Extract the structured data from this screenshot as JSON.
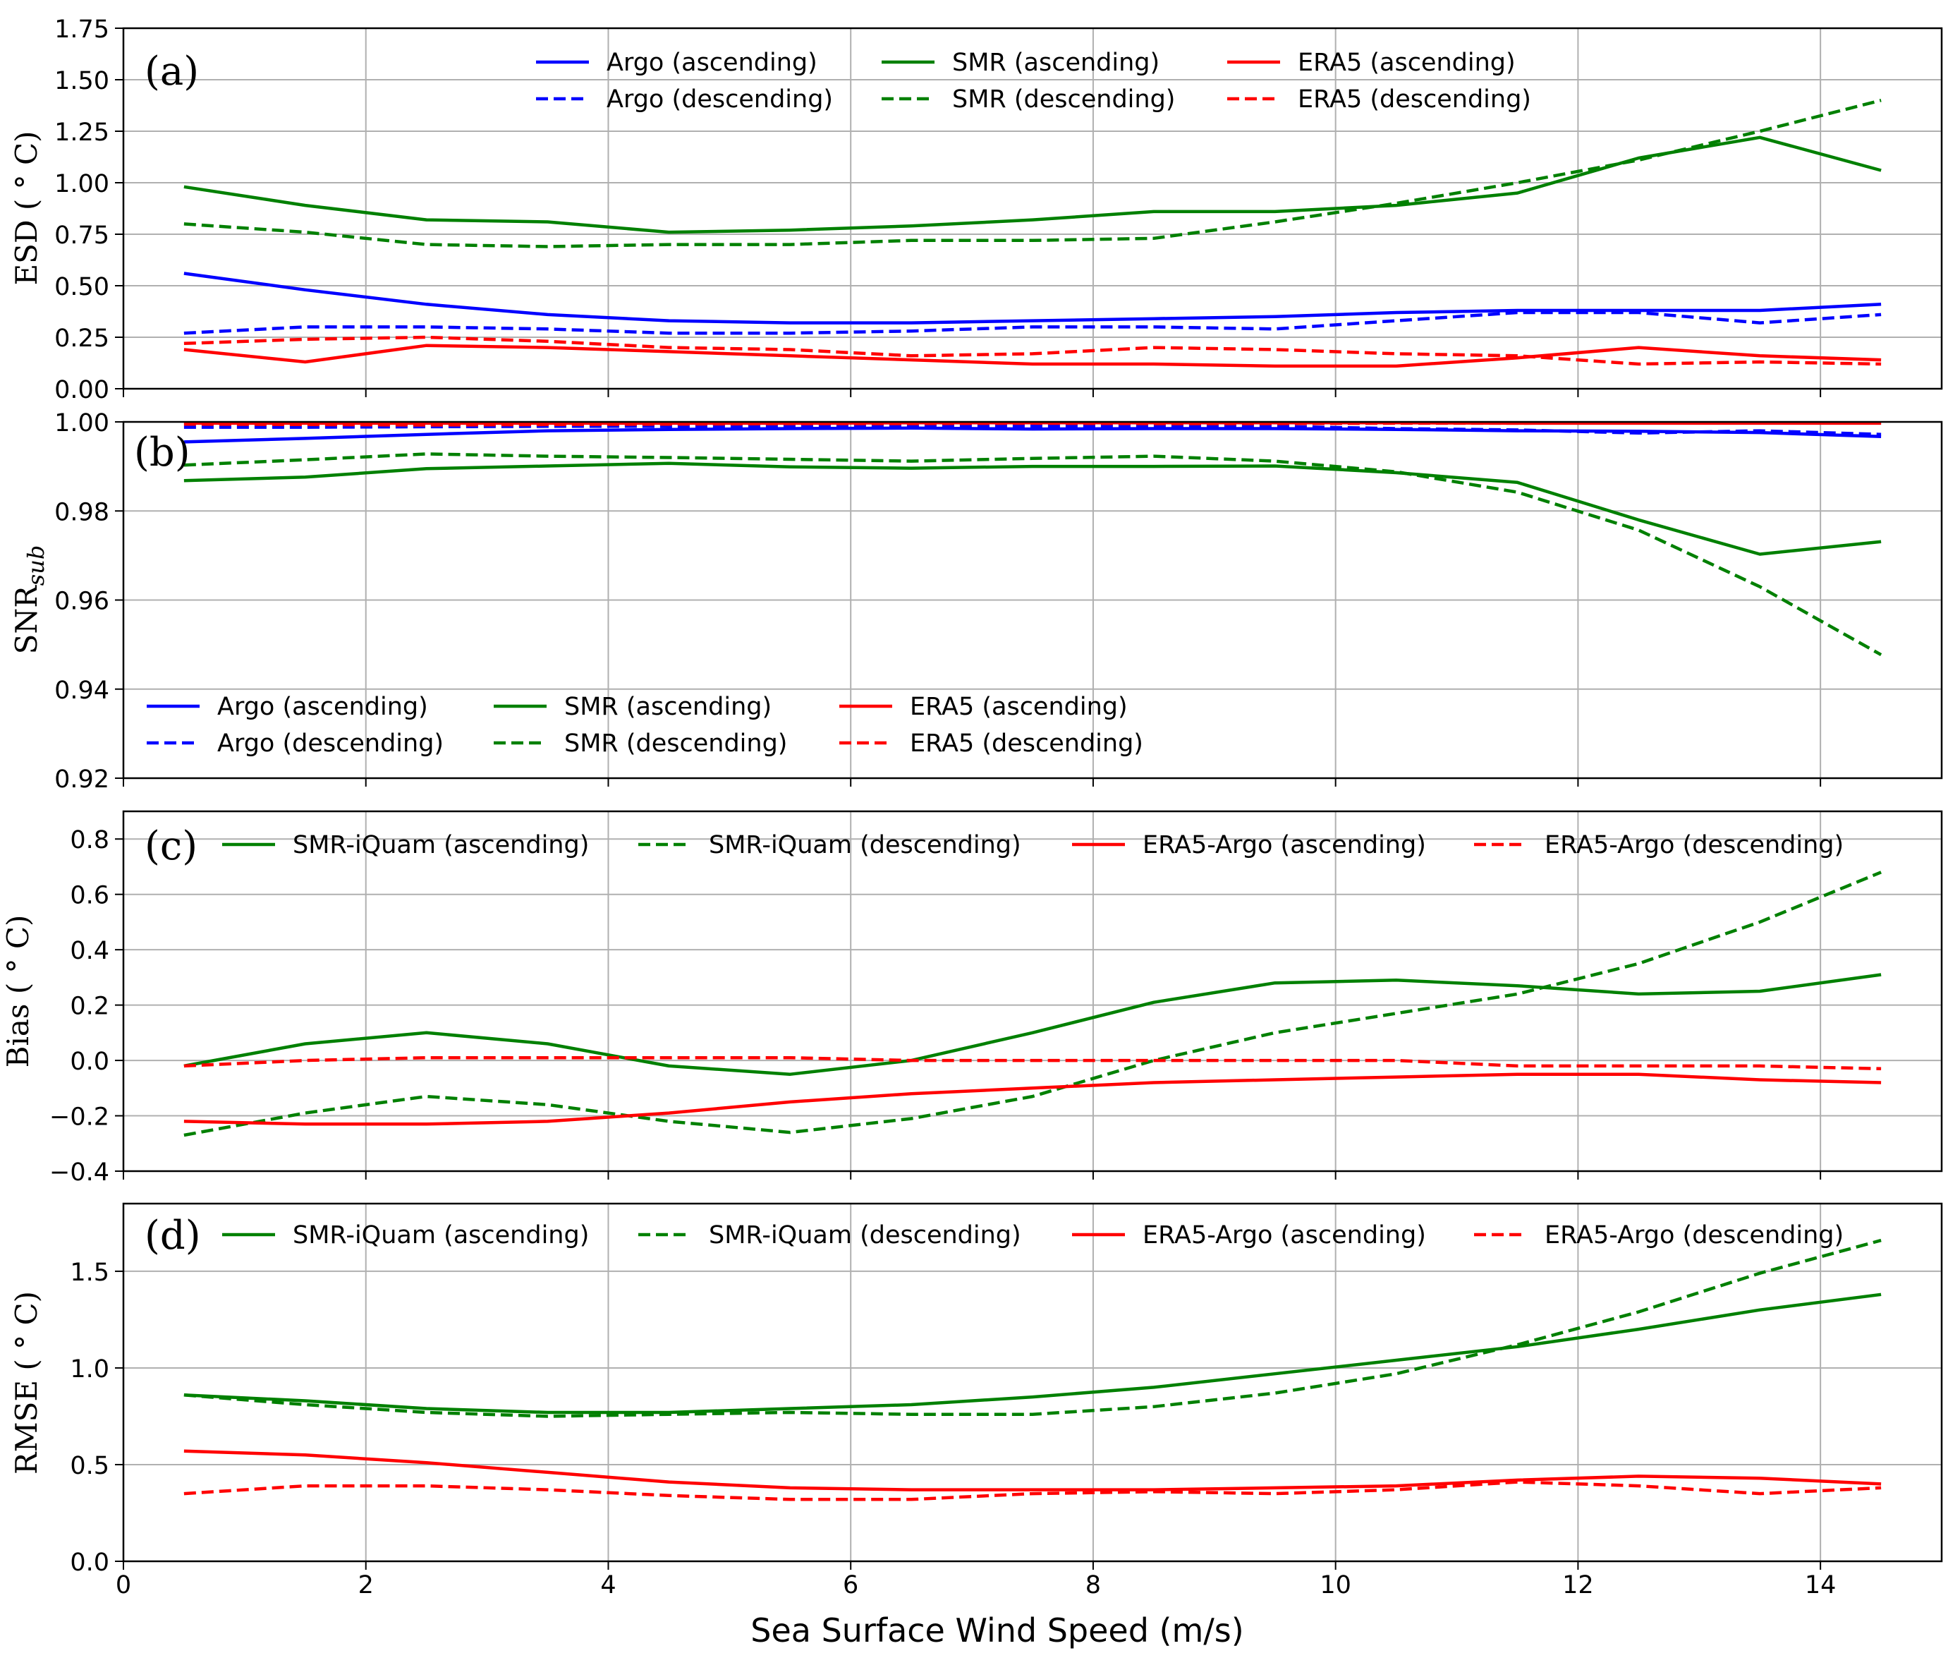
{
  "x_axis": {
    "label": "Sea Surface Wind Speed (m/s)",
    "range": [
      0,
      15
    ],
    "ticks": [
      0,
      2,
      4,
      6,
      8,
      10,
      12,
      14
    ]
  },
  "colors": {
    "argo": "#0000ff",
    "smr": "#008000",
    "era5": "#ff0000"
  },
  "chart_data": [
    {
      "type": "line",
      "panel": "(a)",
      "ylabel": "ESD ( ° C)",
      "ylim": [
        0,
        1.75
      ],
      "yticks": [
        "0.00",
        "0.25",
        "0.50",
        "0.75",
        "1.00",
        "1.25",
        "1.50",
        "1.75"
      ],
      "legend_position": "top-center",
      "x": [
        0.5,
        1.5,
        2.5,
        3.5,
        4.5,
        5.5,
        6.5,
        7.5,
        8.5,
        9.5,
        10.5,
        11.5,
        12.5,
        13.5,
        14.5
      ],
      "series": [
        {
          "name": "Argo (ascending)",
          "color": "#0000ff",
          "style": "solid",
          "values": [
            0.56,
            0.48,
            0.41,
            0.36,
            0.33,
            0.32,
            0.32,
            0.33,
            0.34,
            0.35,
            0.37,
            0.38,
            0.38,
            0.38,
            0.41
          ]
        },
        {
          "name": "SMR (ascending)",
          "color": "#008000",
          "style": "solid",
          "values": [
            0.98,
            0.89,
            0.82,
            0.81,
            0.76,
            0.77,
            0.79,
            0.82,
            0.86,
            0.86,
            0.89,
            0.95,
            1.12,
            1.22,
            1.06
          ]
        },
        {
          "name": "ERA5 (ascending)",
          "color": "#ff0000",
          "style": "solid",
          "values": [
            0.19,
            0.13,
            0.21,
            0.2,
            0.18,
            0.16,
            0.14,
            0.12,
            0.12,
            0.11,
            0.11,
            0.15,
            0.2,
            0.16,
            0.14
          ]
        },
        {
          "name": "Argo (descending)",
          "color": "#0000ff",
          "style": "dashed",
          "values": [
            0.27,
            0.3,
            0.3,
            0.29,
            0.27,
            0.27,
            0.28,
            0.3,
            0.3,
            0.29,
            0.33,
            0.37,
            0.37,
            0.32,
            0.36
          ]
        },
        {
          "name": "SMR (descending)",
          "color": "#008000",
          "style": "dashed",
          "values": [
            0.8,
            0.76,
            0.7,
            0.69,
            0.7,
            0.7,
            0.72,
            0.72,
            0.73,
            0.81,
            0.9,
            1.0,
            1.11,
            1.25,
            1.4
          ]
        },
        {
          "name": "ERA5 (descending)",
          "color": "#ff0000",
          "style": "dashed",
          "values": [
            0.22,
            0.24,
            0.25,
            0.23,
            0.2,
            0.19,
            0.16,
            0.17,
            0.2,
            0.19,
            0.17,
            0.16,
            0.12,
            0.13,
            0.12
          ]
        }
      ]
    },
    {
      "type": "line",
      "panel": "(b)",
      "ylabel": "SNR",
      "ylabel_sub": "sub",
      "ylim": [
        0.92,
        1.0
      ],
      "yticks": [
        "0.92",
        "0.94",
        "0.96",
        "0.98",
        "1.00"
      ],
      "legend_position": "lower-left",
      "x": [
        0.5,
        1.5,
        2.5,
        3.5,
        4.5,
        5.5,
        6.5,
        7.5,
        8.5,
        9.5,
        10.5,
        11.5,
        12.5,
        13.5,
        14.5
      ],
      "series": [
        {
          "name": "Argo (ascending)",
          "color": "#0000ff",
          "style": "solid",
          "values": [
            0.9955,
            0.9963,
            0.9972,
            0.998,
            0.9983,
            0.9985,
            0.9986,
            0.9984,
            0.9985,
            0.9985,
            0.9983,
            0.998,
            0.9979,
            0.9976,
            0.9967
          ]
        },
        {
          "name": "SMR (ascending)",
          "color": "#008000",
          "style": "solid",
          "values": [
            0.9868,
            0.9876,
            0.9895,
            0.9901,
            0.9907,
            0.9899,
            0.9896,
            0.99,
            0.99,
            0.9901,
            0.9886,
            0.9864,
            0.978,
            0.9703,
            0.9731
          ]
        },
        {
          "name": "ERA5 (ascending)",
          "color": "#ff0000",
          "style": "solid",
          "values": [
            0.9997,
            0.9997,
            0.9997,
            0.9997,
            0.9997,
            0.9997,
            0.9998,
            0.9998,
            0.9998,
            0.9998,
            0.9998,
            0.9997,
            0.9997,
            0.9997,
            0.9997
          ]
        },
        {
          "name": "Argo (descending)",
          "color": "#0000ff",
          "style": "dashed",
          "values": [
            0.9988,
            0.9988,
            0.9989,
            0.999,
            0.999,
            0.999,
            0.999,
            0.999,
            0.999,
            0.999,
            0.9985,
            0.9982,
            0.9975,
            0.998,
            0.9972
          ]
        },
        {
          "name": "SMR (descending)",
          "color": "#008000",
          "style": "dashed",
          "values": [
            0.9903,
            0.9915,
            0.9928,
            0.9923,
            0.992,
            0.9916,
            0.9912,
            0.9918,
            0.9923,
            0.9912,
            0.9888,
            0.9842,
            0.9757,
            0.963,
            0.9477
          ]
        },
        {
          "name": "ERA5 (descending)",
          "color": "#ff0000",
          "style": "dashed",
          "values": [
            0.9995,
            0.9994,
            0.9993,
            0.9994,
            0.9995,
            0.9996,
            0.9996,
            0.9997,
            0.9996,
            0.9996,
            0.9997,
            0.9997,
            0.9998,
            0.9998,
            0.9998
          ]
        }
      ]
    },
    {
      "type": "line",
      "panel": "(c)",
      "ylabel": "Bias ( ° C)",
      "ylim": [
        -0.4,
        0.9
      ],
      "yticks": [
        "−0.4",
        "−0.2",
        "0.0",
        "0.2",
        "0.4",
        "0.6",
        "0.8"
      ],
      "legend_position": "top",
      "x": [
        0.5,
        1.5,
        2.5,
        3.5,
        4.5,
        5.5,
        6.5,
        7.5,
        8.5,
        9.5,
        10.5,
        11.5,
        12.5,
        13.5,
        14.5
      ],
      "series": [
        {
          "name": "SMR-iQuam (ascending)",
          "color": "#008000",
          "style": "solid",
          "values": [
            -0.02,
            0.06,
            0.1,
            0.06,
            -0.02,
            -0.05,
            0.0,
            0.1,
            0.21,
            0.28,
            0.29,
            0.27,
            0.24,
            0.25,
            0.31
          ]
        },
        {
          "name": "SMR-iQuam (descending)",
          "color": "#008000",
          "style": "dashed",
          "values": [
            -0.27,
            -0.19,
            -0.13,
            -0.16,
            -0.22,
            -0.26,
            -0.21,
            -0.13,
            0.0,
            0.1,
            0.17,
            0.24,
            0.35,
            0.5,
            0.68
          ]
        },
        {
          "name": "ERA5-Argo (ascending)",
          "color": "#ff0000",
          "style": "solid",
          "values": [
            -0.22,
            -0.23,
            -0.23,
            -0.22,
            -0.19,
            -0.15,
            -0.12,
            -0.1,
            -0.08,
            -0.07,
            -0.06,
            -0.05,
            -0.05,
            -0.07,
            -0.08
          ]
        },
        {
          "name": "ERA5-Argo (descending)",
          "color": "#ff0000",
          "style": "dashed",
          "values": [
            -0.02,
            0.0,
            0.01,
            0.01,
            0.01,
            0.01,
            0.0,
            0.0,
            0.0,
            0.0,
            0.0,
            -0.02,
            -0.02,
            -0.02,
            -0.03
          ]
        }
      ]
    },
    {
      "type": "line",
      "panel": "(d)",
      "ylabel": "RMSE ( ° C)",
      "ylim": [
        0,
        1.85
      ],
      "yticks": [
        "0.0",
        "0.5",
        "1.0",
        "1.5"
      ],
      "legend_position": "top",
      "x": [
        0.5,
        1.5,
        2.5,
        3.5,
        4.5,
        5.5,
        6.5,
        7.5,
        8.5,
        9.5,
        10.5,
        11.5,
        12.5,
        13.5,
        14.5
      ],
      "series": [
        {
          "name": "SMR-iQuam (ascending)",
          "color": "#008000",
          "style": "solid",
          "values": [
            0.86,
            0.83,
            0.79,
            0.77,
            0.77,
            0.79,
            0.81,
            0.85,
            0.9,
            0.97,
            1.04,
            1.11,
            1.2,
            1.3,
            1.38
          ]
        },
        {
          "name": "SMR-iQuam (descending)",
          "color": "#008000",
          "style": "dashed",
          "values": [
            0.86,
            0.81,
            0.77,
            0.75,
            0.76,
            0.77,
            0.76,
            0.76,
            0.8,
            0.87,
            0.97,
            1.12,
            1.29,
            1.49,
            1.66
          ]
        },
        {
          "name": "ERA5-Argo (ascending)",
          "color": "#ff0000",
          "style": "solid",
          "values": [
            0.57,
            0.55,
            0.51,
            0.46,
            0.41,
            0.38,
            0.37,
            0.37,
            0.37,
            0.38,
            0.39,
            0.42,
            0.44,
            0.43,
            0.4
          ]
        },
        {
          "name": "ERA5-Argo (descending)",
          "color": "#ff0000",
          "style": "dashed",
          "values": [
            0.35,
            0.39,
            0.39,
            0.37,
            0.34,
            0.32,
            0.32,
            0.35,
            0.36,
            0.35,
            0.37,
            0.41,
            0.39,
            0.35,
            0.38
          ]
        }
      ]
    }
  ]
}
